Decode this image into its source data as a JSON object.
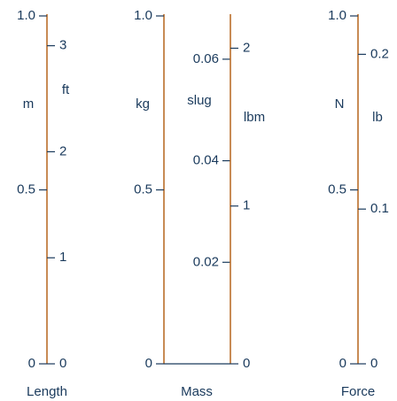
{
  "colors": {
    "axis": "#b5651d",
    "ink": "#1a3a5c"
  },
  "scales": [
    {
      "title": "Length",
      "left_unit": "m",
      "right_unit": "ft",
      "left_ticks": [
        {
          "value": 0,
          "label": "0"
        },
        {
          "value": 0.5,
          "label": "0.5"
        },
        {
          "value": 1.0,
          "label": "1.0"
        }
      ],
      "right_ticks": [
        {
          "value": 0,
          "label": "0"
        },
        {
          "value": 1,
          "label": "1"
        },
        {
          "value": 2,
          "label": "2"
        },
        {
          "value": 3,
          "label": "3"
        }
      ],
      "right_per_left": 3.28084
    },
    {
      "title": "Mass",
      "left_unit": "kg",
      "middle_unit": "slug",
      "right_unit": "lbm",
      "left_ticks": [
        {
          "value": 0,
          "label": "0"
        },
        {
          "value": 0.5,
          "label": "0.5"
        },
        {
          "value": 1.0,
          "label": "1.0"
        }
      ],
      "middle_ticks": [
        {
          "value": 0.02,
          "label": "0.02"
        },
        {
          "value": 0.04,
          "label": "0.04"
        },
        {
          "value": 0.06,
          "label": "0.06"
        }
      ],
      "middle_per_left": 0.0685218,
      "right_ticks": [
        {
          "value": 0,
          "label": "0"
        },
        {
          "value": 1,
          "label": "1"
        },
        {
          "value": 2,
          "label": "2"
        }
      ],
      "right_per_left": 2.20462
    },
    {
      "title": "Force",
      "left_unit": "N",
      "right_unit": "lb",
      "left_ticks": [
        {
          "value": 0,
          "label": "0"
        },
        {
          "value": 0.5,
          "label": "0.5"
        },
        {
          "value": 1.0,
          "label": "1.0"
        }
      ],
      "right_ticks": [
        {
          "value": 0,
          "label": "0"
        },
        {
          "value": 0.1,
          "label": "0.1"
        },
        {
          "value": 0.2,
          "label": "0.2"
        }
      ],
      "right_per_left": 0.224809
    }
  ]
}
